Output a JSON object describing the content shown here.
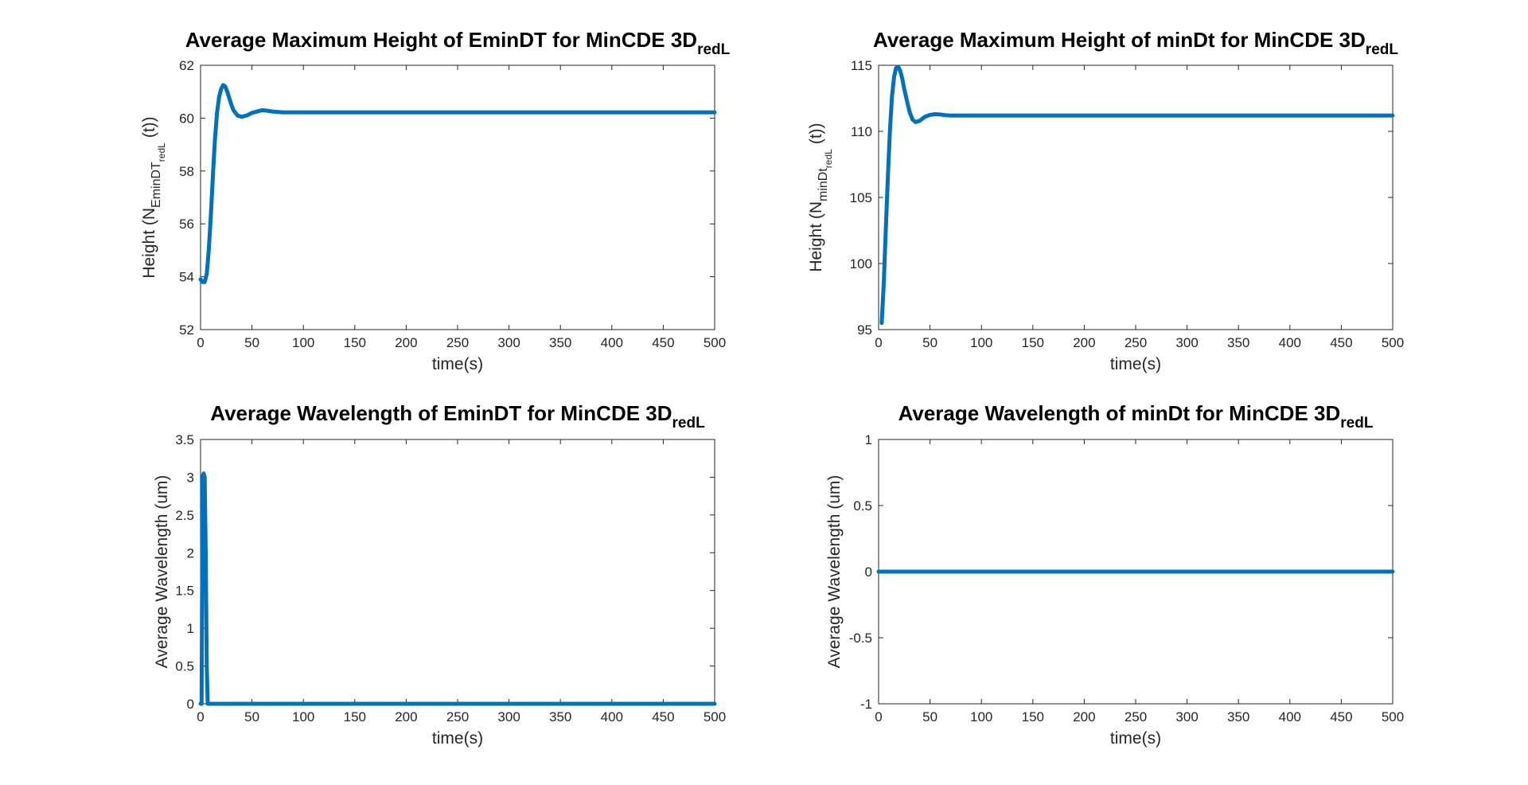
{
  "chart_data": [
    {
      "type": "line",
      "title": "Average Maximum Height of EminDT for MinCDE 3D",
      "title_subscript": "redL",
      "xlabel": "time(s)",
      "ylabel_main": "Height (N",
      "ylabel_sub": "EminDT",
      "ylabel_subsub": "redL",
      "ylabel_tail": "(t))",
      "xlim": [
        0,
        500
      ],
      "ylim": [
        52,
        62
      ],
      "xticks": [
        0,
        50,
        100,
        150,
        200,
        250,
        300,
        350,
        400,
        450,
        500
      ],
      "yticks": [
        52,
        54,
        56,
        58,
        60,
        62
      ],
      "line_color": "#0072BD",
      "series": [
        {
          "x": [
            0,
            2,
            4,
            6,
            8,
            10,
            12,
            14,
            16,
            18,
            20,
            22,
            24,
            26,
            28,
            30,
            32,
            34,
            36,
            40,
            45,
            50,
            55,
            60,
            65,
            70,
            80,
            90,
            100,
            150,
            200,
            250,
            300,
            350,
            400,
            450,
            500
          ],
          "y": [
            53.9,
            53.8,
            53.8,
            54.1,
            55.0,
            56.3,
            57.8,
            59.2,
            60.2,
            60.8,
            61.1,
            61.25,
            61.2,
            61.0,
            60.75,
            60.5,
            60.3,
            60.2,
            60.1,
            60.05,
            60.1,
            60.2,
            60.25,
            60.3,
            60.28,
            60.25,
            60.22,
            60.22,
            60.22,
            60.22,
            60.22,
            60.22,
            60.22,
            60.22,
            60.22,
            60.22,
            60.22
          ]
        }
      ]
    },
    {
      "type": "line",
      "title": "Average Maximum Height of minDt for MinCDE 3D",
      "title_subscript": "redL",
      "xlabel": "time(s)",
      "ylabel_main": "Height (N",
      "ylabel_sub": "minDt",
      "ylabel_subsub": "redL",
      "ylabel_tail": "(t))",
      "xlim": [
        0,
        500
      ],
      "ylim": [
        95,
        115
      ],
      "xticks": [
        0,
        50,
        100,
        150,
        200,
        250,
        300,
        350,
        400,
        450,
        500
      ],
      "yticks": [
        95,
        100,
        105,
        110,
        115
      ],
      "line_color": "#0072BD",
      "series": [
        {
          "x": [
            3,
            5,
            7,
            9,
            11,
            13,
            15,
            17,
            19,
            21,
            23,
            25,
            27,
            30,
            33,
            36,
            40,
            45,
            50,
            55,
            60,
            65,
            70,
            80,
            90,
            100,
            150,
            200,
            250,
            300,
            350,
            400,
            450,
            500
          ],
          "y": [
            95.5,
            98.5,
            102.5,
            106.5,
            110.0,
            112.6,
            114.1,
            114.8,
            114.9,
            114.6,
            114.0,
            113.2,
            112.5,
            111.5,
            110.9,
            110.7,
            110.8,
            111.1,
            111.25,
            111.3,
            111.28,
            111.22,
            111.2,
            111.2,
            111.2,
            111.2,
            111.2,
            111.2,
            111.2,
            111.2,
            111.2,
            111.2,
            111.2,
            111.2
          ]
        }
      ]
    },
    {
      "type": "line",
      "title": "Average Wavelength of EminDT for MinCDE 3D",
      "title_subscript": "redL",
      "xlabel": "time(s)",
      "ylabel_main": "Average Wavelength (um)",
      "xlim": [
        0,
        500
      ],
      "ylim": [
        0,
        3.5
      ],
      "xticks": [
        0,
        50,
        100,
        150,
        200,
        250,
        300,
        350,
        400,
        450,
        500
      ],
      "yticks": [
        0,
        0.5,
        1,
        1.5,
        2,
        2.5,
        3,
        3.5
      ],
      "ytick_labels": [
        "0",
        "0.5",
        "1",
        "1.5",
        "2",
        "2.5",
        "3",
        "3.5"
      ],
      "line_color": "#0072BD",
      "series": [
        {
          "x": [
            0,
            1,
            2,
            3,
            4,
            5,
            6,
            7,
            8,
            10,
            50,
            100,
            150,
            200,
            250,
            300,
            350,
            400,
            450,
            500
          ],
          "y": [
            0,
            0,
            3.0,
            3.05,
            3.0,
            2.0,
            0.5,
            0,
            0,
            0,
            0,
            0,
            0,
            0,
            0,
            0,
            0,
            0,
            0,
            0
          ]
        }
      ]
    },
    {
      "type": "line",
      "title": "Average Wavelength of minDt for MinCDE 3D",
      "title_subscript": "redL",
      "xlabel": "time(s)",
      "ylabel_main": "Average Wavelength (um)",
      "xlim": [
        0,
        500
      ],
      "ylim": [
        -1,
        1
      ],
      "xticks": [
        0,
        50,
        100,
        150,
        200,
        250,
        300,
        350,
        400,
        450,
        500
      ],
      "yticks": [
        -1,
        -0.5,
        0,
        0.5,
        1
      ],
      "ytick_labels": [
        "-1",
        "-0.5",
        "0",
        "0.5",
        "1"
      ],
      "line_color": "#0072BD",
      "series": [
        {
          "x": [
            0,
            500
          ],
          "y": [
            0,
            0
          ]
        }
      ]
    }
  ]
}
